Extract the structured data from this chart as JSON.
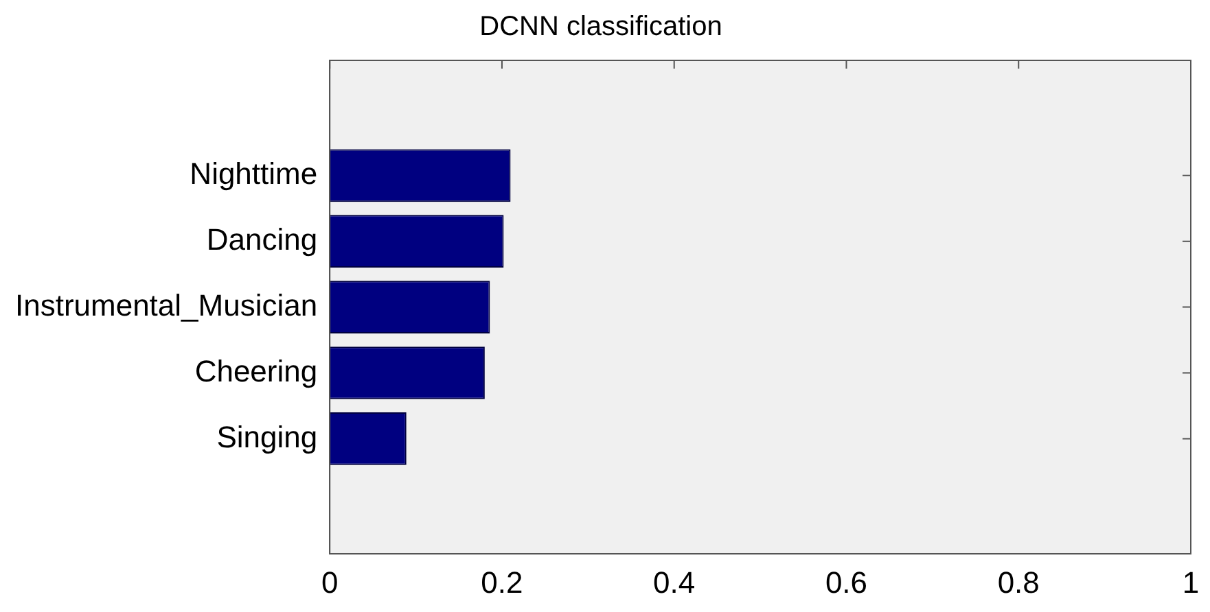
{
  "chart_data": {
    "type": "bar",
    "orientation": "horizontal",
    "title": "DCNN classification",
    "categories": [
      "Nighttime",
      "Dancing",
      "Instrumental_Musician",
      "Cheering",
      "Singing"
    ],
    "values": [
      0.21,
      0.202,
      0.186,
      0.18,
      0.089
    ],
    "color": "#000080",
    "xlim": [
      0,
      1
    ],
    "xticks": [
      0,
      0.2,
      0.4,
      0.6,
      0.8,
      1
    ],
    "grid": false,
    "legend": false
  }
}
